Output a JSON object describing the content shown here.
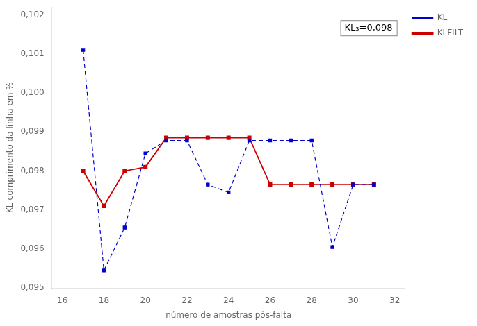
{
  "chart_data": {
    "type": "line",
    "x_label": "número de amostras pós-falta",
    "y_label": "KL-comprimento da linha em %",
    "x": [
      17,
      18,
      19,
      20,
      21,
      22,
      23,
      24,
      25,
      26,
      27,
      28,
      29,
      30,
      31
    ],
    "series": [
      {
        "name": "KL",
        "color": "#0000CC",
        "line_style": "dashed",
        "marker": "square",
        "values": [
          0.1011,
          0.09545,
          0.09655,
          0.09845,
          0.09878,
          0.09878,
          0.09765,
          0.09745,
          0.09878,
          0.09878,
          0.09878,
          0.09878,
          0.09605,
          0.09765,
          0.09765
        ]
      },
      {
        "name": "KLFILT",
        "color": "#CC0000",
        "line_style": "solid",
        "marker": "square",
        "values": [
          0.098,
          0.0971,
          0.098,
          0.0981,
          0.09885,
          0.09885,
          0.09885,
          0.09885,
          0.09885,
          0.09765,
          0.09765,
          0.09765,
          0.09765,
          0.09765,
          0.09765
        ]
      }
    ],
    "xlim": [
      15.5,
      32.5
    ],
    "xticks": [
      16,
      18,
      20,
      22,
      24,
      26,
      28,
      30,
      32
    ],
    "ylim": [
      0.095,
      0.1022
    ],
    "yticks": [
      {
        "value": 0.095,
        "label": "0,095"
      },
      {
        "value": 0.096,
        "label": "0,096"
      },
      {
        "value": 0.097,
        "label": "0,097"
      },
      {
        "value": 0.098,
        "label": "0,098"
      },
      {
        "value": 0.099,
        "label": "0,099"
      },
      {
        "value": 0.1,
        "label": "0,100"
      },
      {
        "value": 0.101,
        "label": "0,101"
      },
      {
        "value": 0.102,
        "label": "0,102"
      }
    ],
    "annotations": [
      "KL₃=0,098"
    ],
    "legend": "right",
    "grid": false
  }
}
